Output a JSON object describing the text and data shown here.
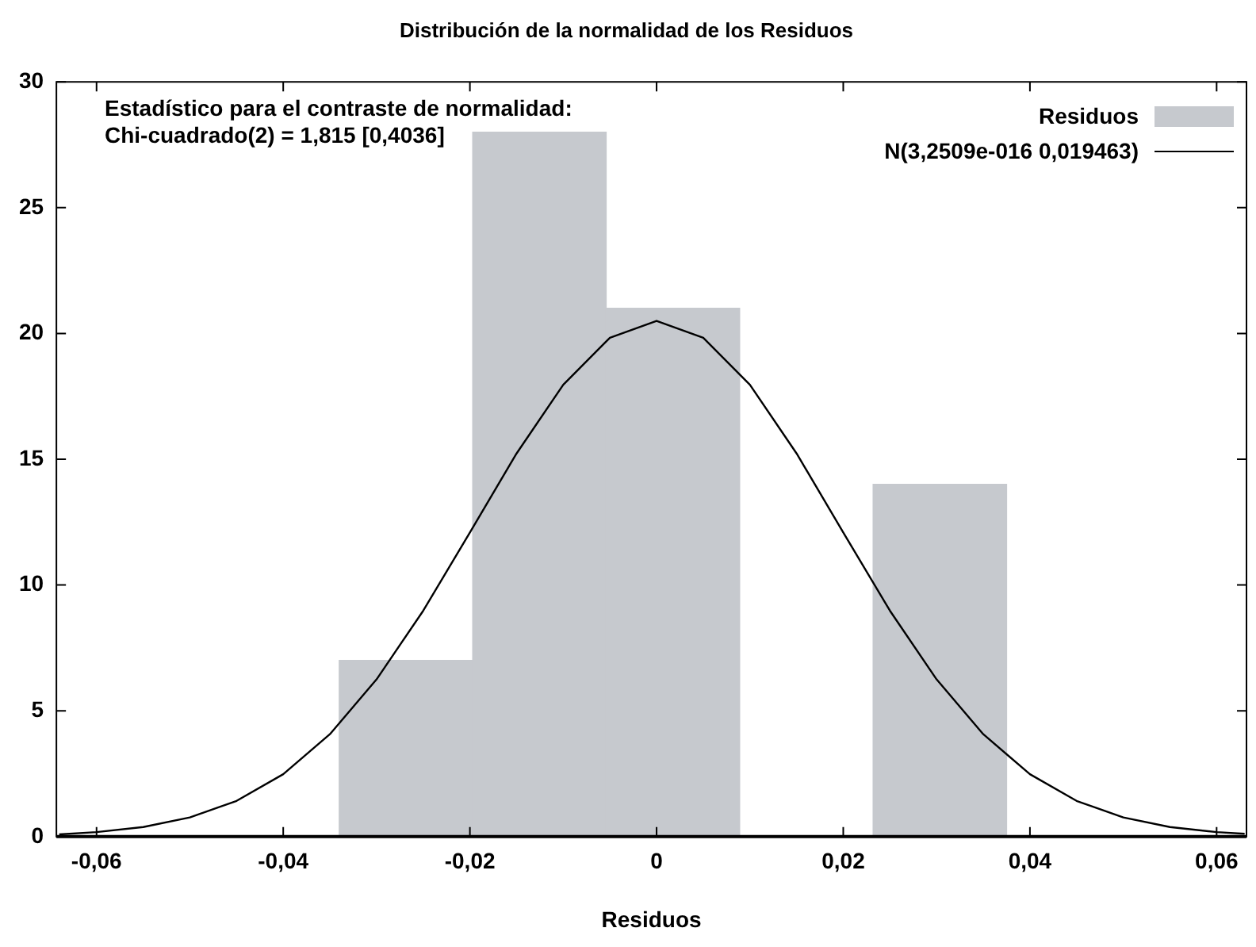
{
  "chart_data": {
    "type": "histogram",
    "title": "Distribución de la normalidad de los Residuos",
    "xlabel": "Residuos",
    "annotations": [
      "Estadístico para el contraste de normalidad:",
      "Chi-cuadrado(2) = 1,815 [0,4036]"
    ],
    "legend": "top right",
    "grid": false,
    "xlim": [
      -0.0643,
      0.0632
    ],
    "xticks": [
      {
        "value": -0.06,
        "label": "-0,06"
      },
      {
        "value": -0.04,
        "label": "-0,04"
      },
      {
        "value": -0.02,
        "label": "-0,02"
      },
      0,
      {
        "value": 0.02,
        "label": "0,02"
      },
      {
        "value": 0.04,
        "label": "0,04"
      },
      {
        "value": 0.06,
        "label": "0,06"
      }
    ],
    "ylim": [
      0,
      30
    ],
    "yticks": [
      0,
      5,
      10,
      15,
      20,
      25,
      30
    ],
    "series": [
      {
        "name": "Residuos",
        "color": "#c6c9ce",
        "bins": [
          -0.034,
          -0.0197,
          -0.0054,
          0.0089,
          0.0232,
          0.0375
        ],
        "values": [
          7,
          28,
          21,
          0,
          14
        ]
      },
      {
        "name": "N(3,2509e-016 0,019463)",
        "type": "line",
        "color": "#000000",
        "marker": "none",
        "x": [
          -0.064,
          -0.06,
          -0.055,
          -0.05,
          -0.045,
          -0.04,
          -0.035,
          -0.03,
          -0.025,
          -0.02,
          -0.015,
          -0.01,
          -0.005,
          0,
          0.005,
          0.01,
          0.015,
          0.02,
          0.025,
          0.03,
          0.035,
          0.04,
          0.045,
          0.05,
          0.055,
          0.06,
          0.063
        ],
        "values": [
          0.09,
          0.18,
          0.38,
          0.76,
          1.42,
          2.48,
          4.07,
          6.25,
          8.98,
          12.09,
          15.23,
          17.96,
          19.83,
          20.5,
          19.83,
          17.96,
          15.23,
          12.09,
          8.98,
          6.25,
          4.07,
          2.48,
          1.42,
          0.76,
          0.38,
          0.18,
          0.11
        ]
      }
    ]
  }
}
